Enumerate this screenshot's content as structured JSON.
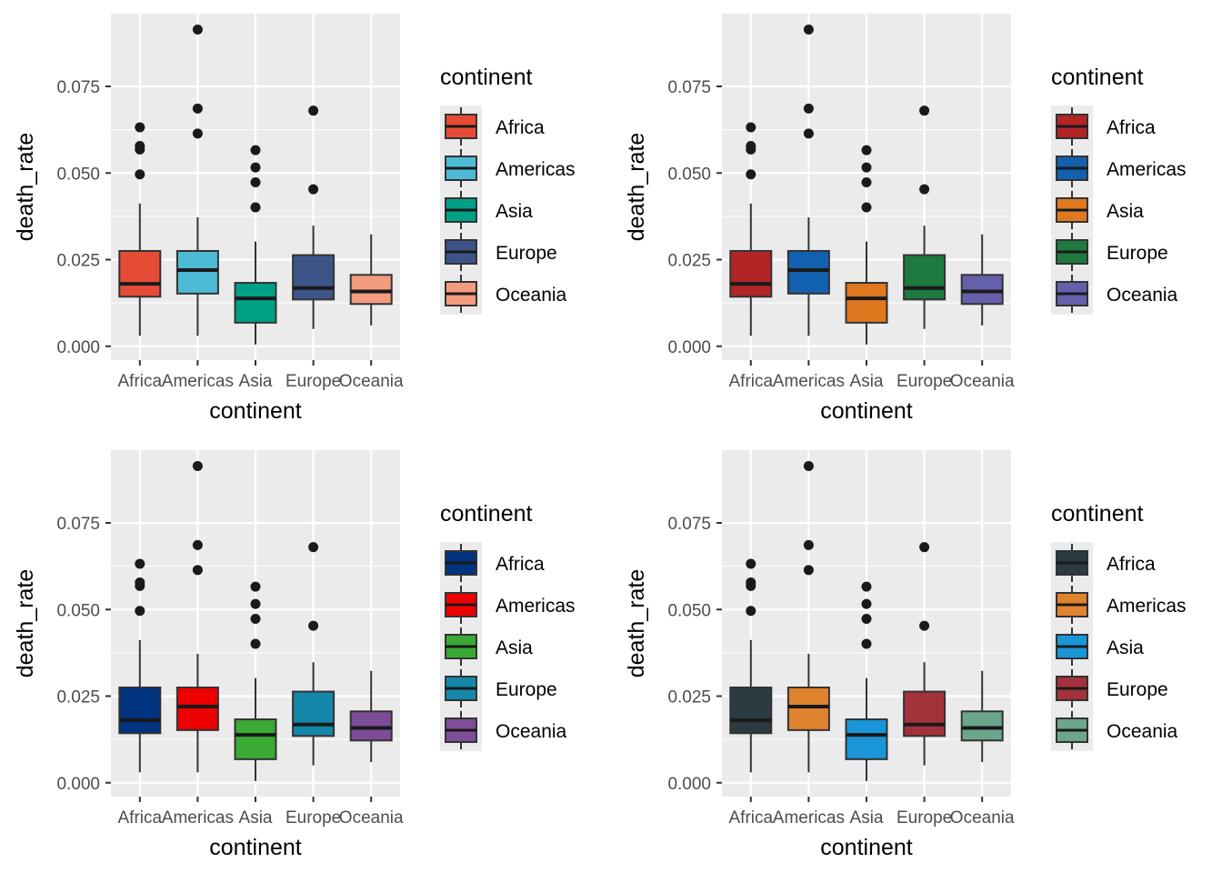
{
  "chart_data": [
    {
      "type": "boxplot",
      "panel": "top-left",
      "xlabel": "continent",
      "ylabel": "death_rate",
      "categories": [
        "Africa",
        "Americas",
        "Asia",
        "Europe",
        "Oceania"
      ],
      "ylim": [
        -0.004,
        0.096
      ],
      "yticks": [
        0.0,
        0.025,
        0.05,
        0.075
      ],
      "ytick_labels": [
        "0.000",
        "0.025",
        "0.050",
        "0.075"
      ],
      "legend_title": "continent",
      "colors": [
        "#E64B35",
        "#4DBBD5",
        "#00A087",
        "#3C5488",
        "#F39B7F"
      ],
      "boxes": [
        {
          "min": 0.003,
          "q1": 0.0143,
          "median": 0.018,
          "q3": 0.0275,
          "max": 0.0412,
          "outliers": [
            0.0496,
            0.0568,
            0.0578,
            0.0632
          ]
        },
        {
          "min": 0.003,
          "q1": 0.0152,
          "median": 0.022,
          "q3": 0.0275,
          "max": 0.0372,
          "outliers": [
            0.0614,
            0.0686,
            0.0914
          ]
        },
        {
          "min": 0.0005,
          "q1": 0.0068,
          "median": 0.0138,
          "q3": 0.0183,
          "max": 0.0302,
          "outliers": [
            0.0401,
            0.0473,
            0.0516,
            0.0566
          ]
        },
        {
          "min": 0.005,
          "q1": 0.0135,
          "median": 0.0168,
          "q3": 0.0263,
          "max": 0.0348,
          "outliers": [
            0.0453,
            0.068
          ]
        },
        {
          "min": 0.006,
          "q1": 0.0122,
          "median": 0.0158,
          "q3": 0.0206,
          "max": 0.0323,
          "outliers": []
        }
      ]
    },
    {
      "type": "boxplot",
      "panel": "top-right",
      "xlabel": "continent",
      "ylabel": "death_rate",
      "categories": [
        "Africa",
        "Americas",
        "Asia",
        "Europe",
        "Oceania"
      ],
      "ylim": [
        -0.004,
        0.096
      ],
      "yticks": [
        0.0,
        0.025,
        0.05,
        0.075
      ],
      "ytick_labels": [
        "0.000",
        "0.025",
        "0.050",
        "0.075"
      ],
      "legend_title": "continent",
      "colors": [
        "#B22525",
        "#1260B0",
        "#E07820",
        "#1E7A3E",
        "#6560AB"
      ],
      "boxes": [
        {
          "min": 0.003,
          "q1": 0.0143,
          "median": 0.018,
          "q3": 0.0275,
          "max": 0.0412,
          "outliers": [
            0.0496,
            0.0568,
            0.0578,
            0.0632
          ]
        },
        {
          "min": 0.003,
          "q1": 0.0152,
          "median": 0.022,
          "q3": 0.0275,
          "max": 0.0372,
          "outliers": [
            0.0614,
            0.0686,
            0.0914
          ]
        },
        {
          "min": 0.0005,
          "q1": 0.0068,
          "median": 0.0138,
          "q3": 0.0183,
          "max": 0.0302,
          "outliers": [
            0.0401,
            0.0473,
            0.0516,
            0.0566
          ]
        },
        {
          "min": 0.005,
          "q1": 0.0135,
          "median": 0.0168,
          "q3": 0.0263,
          "max": 0.0348,
          "outliers": [
            0.0453,
            0.068
          ]
        },
        {
          "min": 0.006,
          "q1": 0.0122,
          "median": 0.0158,
          "q3": 0.0206,
          "max": 0.0323,
          "outliers": []
        }
      ]
    },
    {
      "type": "boxplot",
      "panel": "bottom-left",
      "xlabel": "continent",
      "ylabel": "death_rate",
      "categories": [
        "Africa",
        "Americas",
        "Asia",
        "Europe",
        "Oceania"
      ],
      "ylim": [
        -0.004,
        0.096
      ],
      "yticks": [
        0.0,
        0.025,
        0.05,
        0.075
      ],
      "ytick_labels": [
        "0.000",
        "0.025",
        "0.050",
        "0.075"
      ],
      "legend_title": "continent",
      "colors": [
        "#003380",
        "#EE0000",
        "#3AAA35",
        "#1487AA",
        "#7E4D97"
      ],
      "boxes": [
        {
          "min": 0.003,
          "q1": 0.0143,
          "median": 0.018,
          "q3": 0.0275,
          "max": 0.0412,
          "outliers": [
            0.0496,
            0.0568,
            0.0578,
            0.0632
          ]
        },
        {
          "min": 0.003,
          "q1": 0.0152,
          "median": 0.022,
          "q3": 0.0275,
          "max": 0.0372,
          "outliers": [
            0.0614,
            0.0686,
            0.0914
          ]
        },
        {
          "min": 0.0005,
          "q1": 0.0068,
          "median": 0.0138,
          "q3": 0.0183,
          "max": 0.0302,
          "outliers": [
            0.0401,
            0.0473,
            0.0516,
            0.0566
          ]
        },
        {
          "min": 0.005,
          "q1": 0.0135,
          "median": 0.0168,
          "q3": 0.0263,
          "max": 0.0348,
          "outliers": [
            0.0453,
            0.068
          ]
        },
        {
          "min": 0.006,
          "q1": 0.0122,
          "median": 0.0158,
          "q3": 0.0206,
          "max": 0.0323,
          "outliers": []
        }
      ]
    },
    {
      "type": "boxplot",
      "panel": "bottom-right",
      "xlabel": "continent",
      "ylabel": "death_rate",
      "categories": [
        "Africa",
        "Americas",
        "Asia",
        "Europe",
        "Oceania"
      ],
      "ylim": [
        -0.004,
        0.096
      ],
      "yticks": [
        0.0,
        0.025,
        0.05,
        0.075
      ],
      "ytick_labels": [
        "0.000",
        "0.025",
        "0.050",
        "0.075"
      ],
      "legend_title": "continent",
      "colors": [
        "#2A3B42",
        "#E0832F",
        "#1A95D8",
        "#A3323A",
        "#6BA58B"
      ],
      "boxes": [
        {
          "min": 0.003,
          "q1": 0.0143,
          "median": 0.018,
          "q3": 0.0275,
          "max": 0.0412,
          "outliers": [
            0.0496,
            0.0568,
            0.0578,
            0.0632
          ]
        },
        {
          "min": 0.003,
          "q1": 0.0152,
          "median": 0.022,
          "q3": 0.0275,
          "max": 0.0372,
          "outliers": [
            0.0614,
            0.0686,
            0.0914
          ]
        },
        {
          "min": 0.0005,
          "q1": 0.0068,
          "median": 0.0138,
          "q3": 0.0183,
          "max": 0.0302,
          "outliers": [
            0.0401,
            0.0473,
            0.0516,
            0.0566
          ]
        },
        {
          "min": 0.005,
          "q1": 0.0135,
          "median": 0.0168,
          "q3": 0.0263,
          "max": 0.0348,
          "outliers": [
            0.0453,
            0.068
          ]
        },
        {
          "min": 0.006,
          "q1": 0.0122,
          "median": 0.0158,
          "q3": 0.0206,
          "max": 0.0323,
          "outliers": []
        }
      ]
    }
  ]
}
